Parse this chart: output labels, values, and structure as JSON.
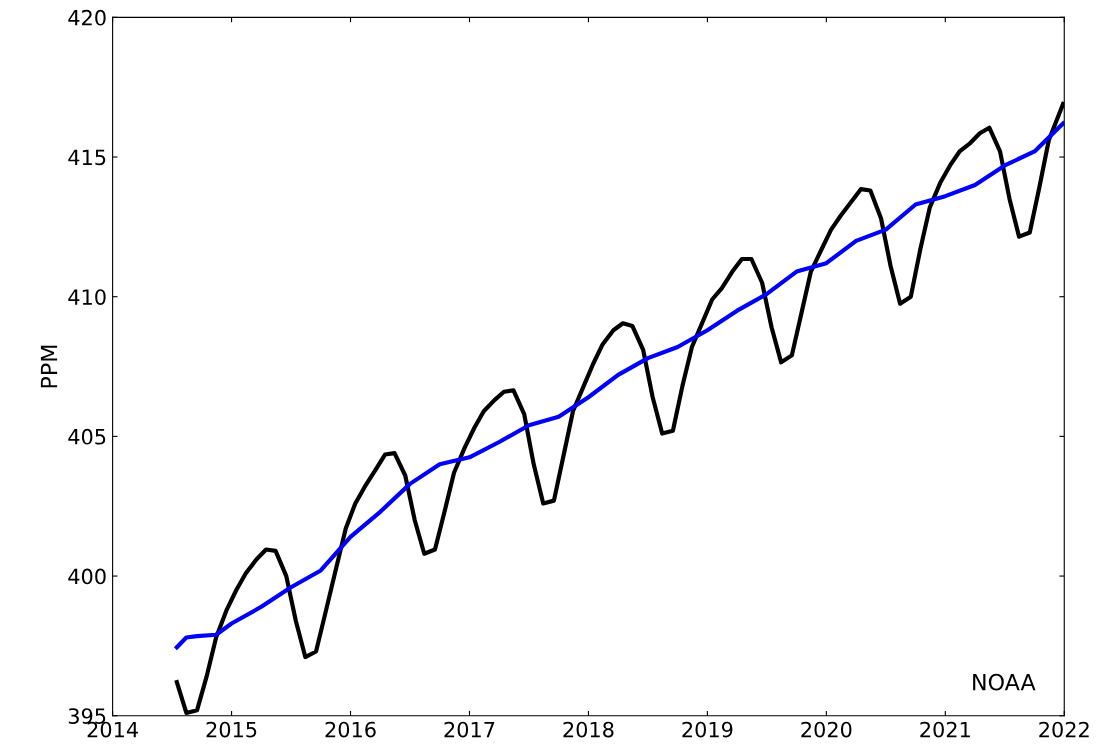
{
  "chart_data": {
    "type": "line",
    "ylabel": "PPM",
    "xlim": [
      2014,
      2022
    ],
    "ylim": [
      395,
      420
    ],
    "xticks": [
      2014,
      2015,
      2016,
      2017,
      2018,
      2019,
      2020,
      2021,
      2022
    ],
    "yticks": [
      395,
      400,
      405,
      410,
      415,
      420
    ],
    "grid": false,
    "annotations": [
      "NOAA"
    ],
    "series": [
      {
        "color": "#000000",
        "x": [
          2014.54,
          2014.62,
          2014.71,
          2014.79,
          2014.87,
          2014.96,
          2015.04,
          2015.12,
          2015.21,
          2015.29,
          2015.37,
          2015.46,
          2015.54,
          2015.62,
          2015.71,
          2015.79,
          2015.88,
          2015.96,
          2016.04,
          2016.12,
          2016.21,
          2016.29,
          2016.37,
          2016.46,
          2016.54,
          2016.62,
          2016.71,
          2016.79,
          2016.87,
          2016.96,
          2017.04,
          2017.12,
          2017.21,
          2017.29,
          2017.37,
          2017.46,
          2017.54,
          2017.62,
          2017.71,
          2017.79,
          2017.87,
          2017.96,
          2018.04,
          2018.12,
          2018.21,
          2018.29,
          2018.37,
          2018.46,
          2018.54,
          2018.62,
          2018.71,
          2018.79,
          2018.87,
          2018.96,
          2019.04,
          2019.12,
          2019.21,
          2019.29,
          2019.37,
          2019.46,
          2019.54,
          2019.62,
          2019.71,
          2019.79,
          2019.87,
          2019.96,
          2020.04,
          2020.12,
          2020.21,
          2020.29,
          2020.37,
          2020.46,
          2020.54,
          2020.62,
          2020.71,
          2020.79,
          2020.87,
          2020.96,
          2021.04,
          2021.12,
          2021.21,
          2021.29,
          2021.37,
          2021.46,
          2021.54,
          2021.62,
          2021.71,
          2021.79,
          2021.87,
          2021.99
        ],
        "values": [
          396.2,
          395.1,
          395.2,
          396.4,
          397.8,
          398.8,
          399.5,
          400.1,
          400.6,
          400.95,
          400.9,
          400.0,
          398.4,
          397.1,
          397.3,
          398.7,
          400.3,
          401.7,
          402.6,
          403.2,
          403.8,
          404.35,
          404.4,
          403.6,
          402.0,
          400.8,
          400.95,
          402.3,
          403.7,
          404.6,
          405.3,
          405.9,
          406.3,
          406.6,
          406.65,
          405.8,
          404.0,
          402.6,
          402.7,
          404.3,
          405.9,
          406.8,
          407.6,
          408.3,
          408.8,
          409.05,
          408.95,
          408.1,
          406.4,
          405.1,
          405.2,
          406.8,
          408.2,
          409.1,
          409.9,
          410.3,
          410.9,
          411.35,
          411.35,
          410.5,
          408.9,
          407.65,
          407.9,
          409.4,
          410.9,
          411.7,
          412.4,
          412.9,
          413.4,
          413.85,
          413.8,
          412.8,
          411.1,
          409.75,
          410.0,
          411.7,
          413.2,
          414.1,
          414.7,
          415.2,
          415.5,
          415.85,
          416.05,
          415.2,
          413.5,
          412.15,
          412.3,
          413.9,
          415.6,
          416.9
        ]
      },
      {
        "color": "#0000ff",
        "x": [
          2014.54,
          2014.62,
          2014.71,
          2014.87,
          2015.0,
          2015.25,
          2015.5,
          2015.75,
          2016.0,
          2016.25,
          2016.5,
          2016.75,
          2017.0,
          2017.25,
          2017.5,
          2017.75,
          2018.0,
          2018.25,
          2018.5,
          2018.75,
          2019.0,
          2019.25,
          2019.5,
          2019.75,
          2020.0,
          2020.25,
          2020.5,
          2020.75,
          2021.0,
          2021.25,
          2021.5,
          2021.75,
          2021.99
        ],
        "values": [
          397.45,
          397.8,
          397.85,
          397.9,
          398.3,
          398.9,
          399.6,
          400.2,
          401.4,
          402.3,
          403.3,
          404.0,
          404.25,
          404.8,
          405.4,
          405.7,
          406.4,
          407.2,
          407.8,
          408.2,
          408.8,
          409.5,
          410.1,
          410.9,
          411.2,
          412.0,
          412.4,
          413.3,
          413.6,
          414.0,
          414.7,
          415.2,
          416.2
        ]
      }
    ]
  }
}
